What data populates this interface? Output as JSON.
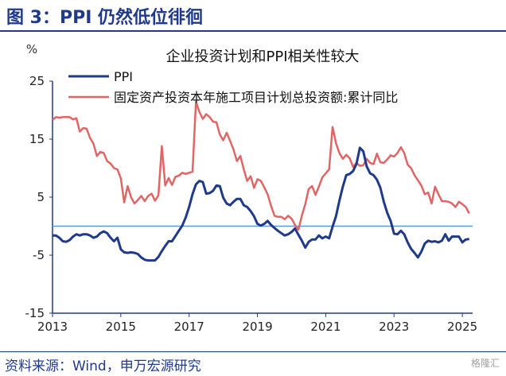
{
  "header": {
    "title": "图 3：PPI 仍然低位徘徊"
  },
  "footer": {
    "source": "资料来源：Wind，申万宏源研究"
  },
  "watermark": "格隆汇",
  "colors": {
    "ppi": "#1f3a8a",
    "investment": "#e06666",
    "axis": "#1f3a8a",
    "zero_line": "#5b9bd5"
  },
  "chart_data": {
    "type": "line",
    "title": "企业投资计划和PPI相关性较大",
    "ylabel": "%",
    "ylim": [
      -15,
      25
    ],
    "yticks": [
      25,
      15,
      5,
      -5,
      -15
    ],
    "xlim": [
      2013,
      2025.3
    ],
    "xticks": [
      "2013",
      "2015",
      "2017",
      "2019",
      "2021",
      "2023",
      "2025"
    ],
    "zero_line": 0,
    "legend": "top-left",
    "series": [
      {
        "name": "PPI",
        "x": [
          2013.0,
          2013.1,
          2013.2,
          2013.3,
          2013.4,
          2013.5,
          2013.6,
          2013.7,
          2013.8,
          2013.9,
          2014.0,
          2014.1,
          2014.2,
          2014.3,
          2014.4,
          2014.5,
          2014.6,
          2014.7,
          2014.8,
          2014.9,
          2015.0,
          2015.1,
          2015.2,
          2015.3,
          2015.4,
          2015.5,
          2015.6,
          2015.7,
          2015.8,
          2015.9,
          2016.0,
          2016.1,
          2016.2,
          2016.3,
          2016.4,
          2016.5,
          2016.6,
          2016.7,
          2016.8,
          2016.9,
          2017.0,
          2017.1,
          2017.2,
          2017.3,
          2017.4,
          2017.5,
          2017.6,
          2017.7,
          2017.8,
          2017.9,
          2018.0,
          2018.1,
          2018.2,
          2018.3,
          2018.4,
          2018.5,
          2018.6,
          2018.7,
          2018.8,
          2018.9,
          2019.0,
          2019.1,
          2019.2,
          2019.3,
          2019.4,
          2019.5,
          2019.6,
          2019.7,
          2019.8,
          2019.9,
          2020.0,
          2020.1,
          2020.2,
          2020.3,
          2020.4,
          2020.5,
          2020.6,
          2020.7,
          2020.8,
          2020.9,
          2021.0,
          2021.1,
          2021.2,
          2021.3,
          2021.4,
          2021.5,
          2021.6,
          2021.7,
          2021.8,
          2021.9,
          2022.0,
          2022.1,
          2022.2,
          2022.3,
          2022.4,
          2022.5,
          2022.6,
          2022.7,
          2022.8,
          2022.9,
          2023.0,
          2023.1,
          2023.2,
          2023.3,
          2023.4,
          2023.5,
          2023.6,
          2023.7,
          2023.8,
          2023.9,
          2024.0,
          2024.1,
          2024.2,
          2024.3,
          2024.4,
          2024.5,
          2024.6,
          2024.7,
          2024.8,
          2024.9,
          2025.0,
          2025.1,
          2025.2
        ],
        "values": [
          -1.6,
          -1.6,
          -2.0,
          -2.6,
          -2.7,
          -2.4,
          -1.8,
          -1.4,
          -1.6,
          -1.4,
          -1.4,
          -1.6,
          -2.0,
          -1.8,
          -1.2,
          -0.9,
          -1.2,
          -2.0,
          -2.6,
          -2.0,
          -4.0,
          -4.5,
          -4.6,
          -4.5,
          -4.6,
          -4.8,
          -5.4,
          -5.8,
          -5.9,
          -5.9,
          -5.9,
          -5.3,
          -4.3,
          -3.4,
          -2.6,
          -2.6,
          -1.7,
          -0.8,
          0.1,
          1.5,
          3.3,
          5.5,
          7.2,
          7.8,
          7.6,
          5.6,
          5.7,
          6.1,
          7.0,
          6.9,
          4.9,
          3.9,
          3.6,
          4.2,
          4.7,
          4.7,
          3.6,
          3.3,
          2.6,
          1.7,
          0.4,
          0.1,
          0.4,
          0.9,
          0.2,
          -0.3,
          -0.8,
          -1.2,
          -1.6,
          -1.4,
          -1.0,
          -0.4,
          -1.5,
          -2.5,
          -3.7,
          -2.7,
          -2.3,
          -2.3,
          -1.6,
          -2.1,
          -1.8,
          -2.1,
          -0.1,
          1.7,
          4.4,
          6.8,
          8.8,
          9.0,
          9.5,
          10.7,
          13.5,
          12.9,
          10.3,
          9.1,
          8.8,
          8.0,
          6.6,
          4.2,
          2.3,
          0.9,
          -1.3,
          -1.4,
          -0.8,
          -1.4,
          -2.8,
          -3.9,
          -4.6,
          -5.4,
          -4.4,
          -3.0,
          -2.5,
          -2.7,
          -2.6,
          -2.8,
          -2.5,
          -1.4,
          -2.5,
          -1.8,
          -1.8,
          -1.8,
          -2.8,
          -2.3,
          -2.2
        ],
        "color": "#1f3a8a"
      },
      {
        "name": "固定资产投资本年施工项目计划总投资额:累计同比",
        "x": [
          2013.0,
          2013.1,
          2013.2,
          2013.3,
          2013.4,
          2013.5,
          2013.6,
          2013.7,
          2013.8,
          2013.9,
          2014.0,
          2014.1,
          2014.2,
          2014.3,
          2014.4,
          2014.5,
          2014.6,
          2014.7,
          2014.8,
          2014.9,
          2015.0,
          2015.1,
          2015.2,
          2015.3,
          2015.4,
          2015.5,
          2015.6,
          2015.7,
          2015.8,
          2015.9,
          2016.0,
          2016.1,
          2016.2,
          2016.3,
          2016.4,
          2016.5,
          2016.6,
          2016.7,
          2016.8,
          2016.9,
          2017.0,
          2017.1,
          2017.2,
          2017.3,
          2017.4,
          2017.5,
          2017.6,
          2017.7,
          2017.8,
          2017.9,
          2018.0,
          2018.1,
          2018.2,
          2018.3,
          2018.4,
          2018.5,
          2018.6,
          2018.7,
          2018.8,
          2018.9,
          2019.0,
          2019.1,
          2019.2,
          2019.3,
          2019.4,
          2019.5,
          2019.6,
          2019.7,
          2019.8,
          2019.9,
          2020.0,
          2020.1,
          2020.2,
          2020.3,
          2020.4,
          2020.5,
          2020.6,
          2020.7,
          2020.8,
          2020.9,
          2021.0,
          2021.1,
          2021.2,
          2021.3,
          2021.4,
          2021.5,
          2021.6,
          2021.7,
          2021.8,
          2021.9,
          2022.0,
          2022.1,
          2022.2,
          2022.3,
          2022.4,
          2022.5,
          2022.6,
          2022.7,
          2022.8,
          2022.9,
          2023.0,
          2023.1,
          2023.2,
          2023.3,
          2023.4,
          2023.5,
          2023.6,
          2023.7,
          2023.8,
          2023.9,
          2024.0,
          2024.1,
          2024.2,
          2024.3,
          2024.4,
          2024.5,
          2024.6,
          2024.7,
          2024.8,
          2024.9,
          2025.0,
          2025.1,
          2025.2
        ],
        "values": [
          18.3,
          18.8,
          18.7,
          18.8,
          18.8,
          18.8,
          18.4,
          18.6,
          16.3,
          16.9,
          16.8,
          15.2,
          14.2,
          12.1,
          12.8,
          12.6,
          11.2,
          10.8,
          10.0,
          9.8,
          8.2,
          4.1,
          6.9,
          5.0,
          3.9,
          4.5,
          5.2,
          4.3,
          5.2,
          5.6,
          4.4,
          5.3,
          13.8,
          7.0,
          8.3,
          7.1,
          8.5,
          8.7,
          9.2,
          9.0,
          9.2,
          9.4,
          21.4,
          19.7,
          18.5,
          19.3,
          18.8,
          18.0,
          17.9,
          15.8,
          14.8,
          16.1,
          14.7,
          13.2,
          11.2,
          12.1,
          9.8,
          7.8,
          8.6,
          6.6,
          8.1,
          7.8,
          6.7,
          5.5,
          3.5,
          1.8,
          1.6,
          1.6,
          1.2,
          1.8,
          1.3,
          0.2,
          -0.6,
          1.8,
          3.8,
          6.4,
          6.9,
          5.4,
          6.8,
          8.4,
          9.1,
          9.8,
          17.1,
          14.3,
          12.6,
          11.6,
          12.3,
          11.7,
          10.2,
          10.9,
          10.4,
          10.5,
          11.6,
          10.9,
          10.7,
          12.5,
          11.0,
          10.9,
          11.5,
          12.2,
          12.0,
          12.6,
          13.6,
          12.6,
          10.6,
          10.0,
          8.8,
          7.9,
          7.0,
          5.5,
          5.8,
          3.9,
          6.8,
          5.5,
          4.3,
          4.3,
          4.2,
          3.9,
          3.3,
          4.2,
          3.8,
          3.3,
          2.2
        ],
        "color": "#e06666"
      }
    ]
  }
}
